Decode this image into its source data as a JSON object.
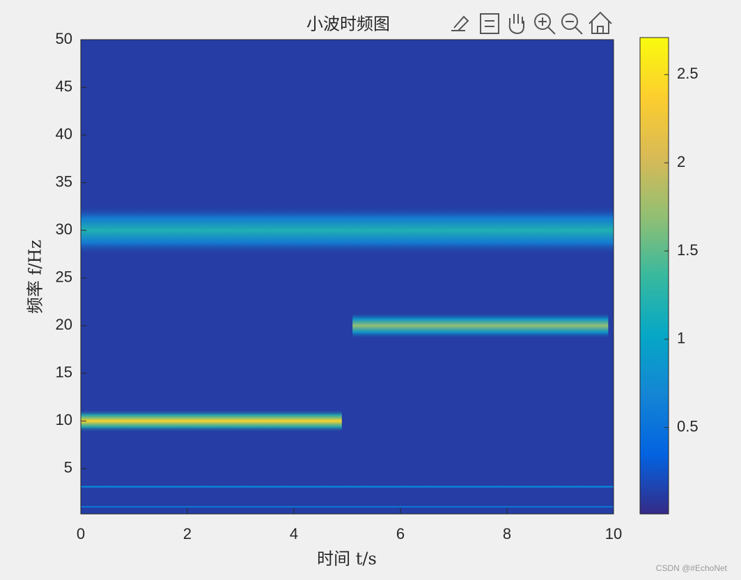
{
  "chart_data": {
    "type": "heatmap",
    "title": "小波时频图",
    "xlabel": "时间 t/s",
    "ylabel": "频率 f/Hz",
    "xlim": [
      0,
      10
    ],
    "ylim": [
      0.25,
      50
    ],
    "xticks": [
      0,
      2,
      4,
      6,
      8,
      10
    ],
    "yticks": [
      5,
      10,
      15,
      20,
      25,
      30,
      35,
      40,
      45,
      50
    ],
    "clim": [
      0.01,
      2.71
    ],
    "cticks": [
      0.5,
      1,
      1.5,
      2,
      2.5
    ],
    "colormap": [
      "#352a87",
      "#0363e1",
      "#1485d4",
      "#06a7c6",
      "#38b99e",
      "#92bf73",
      "#d9ba56",
      "#fcce2e",
      "#f9fb0e"
    ],
    "background_value": 0.12,
    "ridges": [
      {
        "t": [
          0,
          10
        ],
        "f": 30,
        "bandwidth": 2.6,
        "value": 1.2
      },
      {
        "t": [
          0,
          4.9
        ],
        "f": 10,
        "bandwidth": 1.2,
        "value": 2.4
      },
      {
        "t": [
          5.1,
          9.9
        ],
        "f": 20,
        "bandwidth": 1.4,
        "value": 1.7
      },
      {
        "t": [
          0,
          10
        ],
        "f": 3.1,
        "bandwidth": 0.15,
        "value": 0.9
      },
      {
        "t": [
          0,
          10
        ],
        "f": 1,
        "bandwidth": 0.12,
        "value": 0.75
      }
    ]
  },
  "watermark": "CSDN @#EchoNet"
}
